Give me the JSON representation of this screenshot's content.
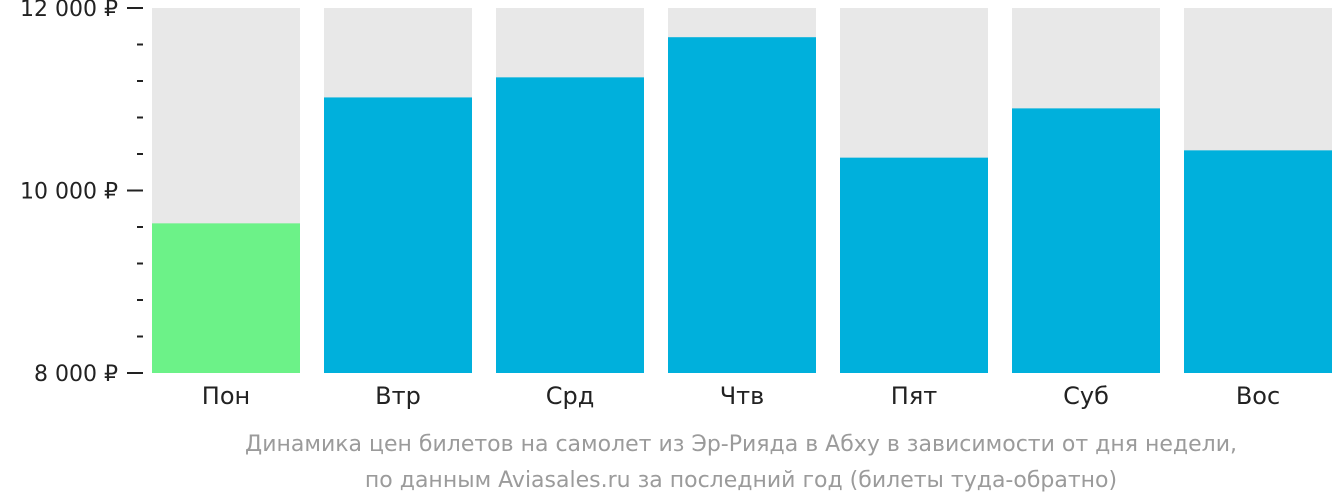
{
  "chart_data": {
    "type": "bar",
    "categories": [
      "Пон",
      "Втр",
      "Срд",
      "Чтв",
      "Пят",
      "Суб",
      "Вос"
    ],
    "values": [
      9640,
      11020,
      11240,
      11680,
      10360,
      10900,
      10440
    ],
    "highlight_index": 0,
    "ylim": [
      8000,
      12000
    ],
    "yticks": [
      {
        "value": 8000,
        "label": "8 000 ₽"
      },
      {
        "value": 10000,
        "label": "10 000 ₽"
      },
      {
        "value": 12000,
        "label": "12 000 ₽"
      }
    ],
    "minor_step": 400,
    "colors": {
      "bar": "#00b0dc",
      "highlight": "#6cf288",
      "background": "#e8e8e8",
      "axis": "#222222"
    },
    "caption": [
      "Динамика цен билетов на самолет из Эр-Рияда в Абху в зависимости от дня недели,",
      "по данным Aviasales.ru за последний год (билеты туда-обратно)"
    ]
  }
}
